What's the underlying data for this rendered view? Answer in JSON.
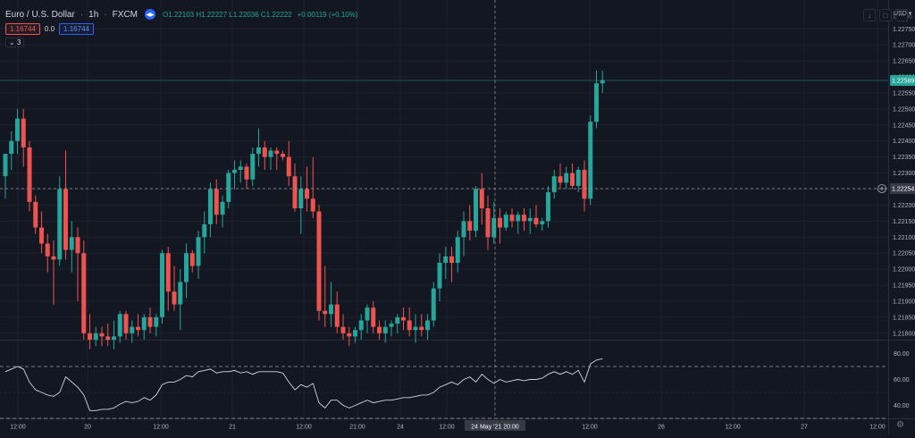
{
  "legend": {
    "symbol": "Euro / U.S. Dollar",
    "interval": "1h",
    "exchange": "FXCM",
    "open": "O1.22103",
    "high": "H1.22227",
    "low": "L1.22036",
    "close": "C1.22222",
    "change": "+0.00119 (+0.10%)"
  },
  "trade": {
    "sell_price": "1.16744",
    "spread": "0.0",
    "buy_price": "1.16744"
  },
  "indicators_toggle": "3",
  "currency": "USD",
  "price_axis": {
    "labels": [
      "1.22750",
      "1.22700",
      "1.22650",
      "1.22600",
      "1.22550",
      "1.22500",
      "1.22450",
      "1.22400",
      "1.22350",
      "1.22300",
      "1.22250",
      "1.22200",
      "1.22150",
      "1.22100",
      "1.22050",
      "1.22000",
      "1.21950",
      "1.21900",
      "1.21850",
      "1.21800"
    ],
    "top_partial": "1.22800",
    "last_price_tag": "1.22589",
    "crosshair_price_tag": "1.22254"
  },
  "rsi_axis": {
    "labels": [
      "80.00",
      "60.00",
      "40.00"
    ]
  },
  "time_axis": {
    "labels": [
      "12:00",
      "20",
      "12:00",
      "21",
      "12:00",
      "21:00",
      "24",
      "12:00",
      "24 May '21  20:00",
      "12:00",
      "26",
      "12:00",
      "27",
      "12:00"
    ]
  },
  "colors": {
    "background": "#131722",
    "bull": "#26a69a",
    "bear": "#ef5350",
    "grid": "#1e222d",
    "rsi_line": "#d1d4dc"
  },
  "chart_data": {
    "type": "candlestick",
    "ylim": [
      1.2178,
      1.2284
    ],
    "candles": [
      [
        1.2229,
        1.2236,
        1.2222,
        1.2236
      ],
      [
        1.2236,
        1.2243,
        1.2231,
        1.224
      ],
      [
        1.224,
        1.225,
        1.2236,
        1.2247
      ],
      [
        1.2247,
        1.225,
        1.2232,
        1.2238
      ],
      [
        1.2238,
        1.224,
        1.2218,
        1.2221
      ],
      [
        1.2221,
        1.2223,
        1.2211,
        1.2213
      ],
      [
        1.2213,
        1.2218,
        1.2205,
        1.2208
      ],
      [
        1.2208,
        1.2211,
        1.2199,
        1.2204
      ],
      [
        1.2204,
        1.2209,
        1.2189,
        1.2203
      ],
      [
        1.2203,
        1.2229,
        1.2201,
        1.2225
      ],
      [
        1.2225,
        1.2237,
        1.2203,
        1.2206
      ],
      [
        1.2206,
        1.2215,
        1.2199,
        1.221
      ],
      [
        1.221,
        1.2213,
        1.219,
        1.2205
      ],
      [
        1.2205,
        1.2209,
        1.2178,
        1.218
      ],
      [
        1.218,
        1.2186,
        1.2175,
        1.2178
      ],
      [
        1.2178,
        1.2182,
        1.2176,
        1.218
      ],
      [
        1.218,
        1.2182,
        1.2176,
        1.2179
      ],
      [
        1.2179,
        1.2183,
        1.2176,
        1.2178
      ],
      [
        1.2178,
        1.2184,
        1.2175,
        1.2179
      ],
      [
        1.2179,
        1.2187,
        1.2177,
        1.2186
      ],
      [
        1.2186,
        1.2187,
        1.2178,
        1.218
      ],
      [
        1.218,
        1.2184,
        1.2177,
        1.2182
      ],
      [
        1.2182,
        1.2186,
        1.2179,
        1.2181
      ],
      [
        1.2181,
        1.2186,
        1.2178,
        1.2185
      ],
      [
        1.2185,
        1.2188,
        1.218,
        1.2182
      ],
      [
        1.2182,
        1.2186,
        1.2179,
        1.2185
      ],
      [
        1.2185,
        1.2206,
        1.2183,
        1.2205
      ],
      [
        1.2205,
        1.2207,
        1.2187,
        1.2193
      ],
      [
        1.2193,
        1.2201,
        1.2187,
        1.2189
      ],
      [
        1.2189,
        1.22,
        1.2181,
        1.2196
      ],
      [
        1.2196,
        1.2208,
        1.2191,
        1.2205
      ],
      [
        1.2205,
        1.2206,
        1.2199,
        1.2201
      ],
      [
        1.2201,
        1.2212,
        1.2197,
        1.221
      ],
      [
        1.221,
        1.2218,
        1.2205,
        1.2214
      ],
      [
        1.2214,
        1.2227,
        1.221,
        1.2225
      ],
      [
        1.2225,
        1.2228,
        1.2214,
        1.2217
      ],
      [
        1.2217,
        1.2223,
        1.2213,
        1.2221
      ],
      [
        1.2221,
        1.2231,
        1.2219,
        1.223
      ],
      [
        1.223,
        1.2234,
        1.2225,
        1.2231
      ],
      [
        1.2231,
        1.2234,
        1.2227,
        1.2232
      ],
      [
        1.2232,
        1.2233,
        1.2225,
        1.2228
      ],
      [
        1.2228,
        1.2238,
        1.2226,
        1.2236
      ],
      [
        1.2236,
        1.2244,
        1.2232,
        1.2238
      ],
      [
        1.2238,
        1.224,
        1.2231,
        1.2235
      ],
      [
        1.2235,
        1.2238,
        1.2231,
        1.2237
      ],
      [
        1.2237,
        1.2238,
        1.2231,
        1.2236
      ],
      [
        1.2236,
        1.2237,
        1.2234,
        1.2235
      ],
      [
        1.2235,
        1.224,
        1.2226,
        1.2229
      ],
      [
        1.2229,
        1.2233,
        1.2218,
        1.2219
      ],
      [
        1.2219,
        1.2229,
        1.2211,
        1.2225
      ],
      [
        1.2225,
        1.2232,
        1.2218,
        1.2222
      ],
      [
        1.2222,
        1.2235,
        1.2216,
        1.2218
      ],
      [
        1.2218,
        1.222,
        1.2184,
        1.2187
      ],
      [
        1.2187,
        1.2201,
        1.2182,
        1.2186
      ],
      [
        1.2186,
        1.2196,
        1.2182,
        1.2189
      ],
      [
        1.2189,
        1.2193,
        1.218,
        1.2182
      ],
      [
        1.2182,
        1.2186,
        1.2178,
        1.218
      ],
      [
        1.218,
        1.2182,
        1.2176,
        1.2179
      ],
      [
        1.2179,
        1.2182,
        1.2177,
        1.2181
      ],
      [
        1.2181,
        1.2186,
        1.2178,
        1.2184
      ],
      [
        1.2184,
        1.2189,
        1.218,
        1.2188
      ],
      [
        1.2188,
        1.219,
        1.218,
        1.2182
      ],
      [
        1.2182,
        1.2184,
        1.2178,
        1.218
      ],
      [
        1.218,
        1.2184,
        1.2177,
        1.2182
      ],
      [
        1.2182,
        1.2184,
        1.2179,
        1.2183
      ],
      [
        1.2183,
        1.2186,
        1.218,
        1.2185
      ],
      [
        1.2185,
        1.2188,
        1.2181,
        1.2184
      ],
      [
        1.2184,
        1.2188,
        1.2179,
        1.2181
      ],
      [
        1.2181,
        1.2186,
        1.2177,
        1.2182
      ],
      [
        1.2182,
        1.2186,
        1.2179,
        1.2181
      ],
      [
        1.2181,
        1.2186,
        1.2178,
        1.2184
      ],
      [
        1.2184,
        1.2196,
        1.2182,
        1.2194
      ],
      [
        1.2194,
        1.2205,
        1.219,
        1.2202
      ],
      [
        1.2202,
        1.2207,
        1.2197,
        1.2204
      ],
      [
        1.2204,
        1.2207,
        1.2196,
        1.2202
      ],
      [
        1.2202,
        1.2212,
        1.2199,
        1.221
      ],
      [
        1.221,
        1.2218,
        1.2204,
        1.2215
      ],
      [
        1.2215,
        1.222,
        1.2209,
        1.2212
      ],
      [
        1.2212,
        1.2226,
        1.221,
        1.2225
      ],
      [
        1.2225,
        1.223,
        1.2214,
        1.2219
      ],
      [
        1.2219,
        1.2223,
        1.2206,
        1.221
      ],
      [
        1.221,
        1.2221,
        1.2208,
        1.2216
      ],
      [
        1.2216,
        1.2219,
        1.2208,
        1.2213
      ],
      [
        1.2213,
        1.2218,
        1.2212,
        1.2217
      ],
      [
        1.2217,
        1.2219,
        1.2213,
        1.2215
      ],
      [
        1.2215,
        1.2218,
        1.2211,
        1.2217
      ],
      [
        1.2217,
        1.2219,
        1.2212,
        1.2215
      ],
      [
        1.2215,
        1.2219,
        1.2211,
        1.2216
      ],
      [
        1.2216,
        1.222,
        1.2213,
        1.2214
      ],
      [
        1.2214,
        1.2216,
        1.2212,
        1.2215
      ],
      [
        1.2215,
        1.2226,
        1.2213,
        1.2224
      ],
      [
        1.2224,
        1.2231,
        1.2222,
        1.2229
      ],
      [
        1.2229,
        1.2233,
        1.2225,
        1.2227
      ],
      [
        1.2227,
        1.2232,
        1.2225,
        1.223
      ],
      [
        1.223,
        1.2233,
        1.2225,
        1.2226
      ],
      [
        1.2226,
        1.2232,
        1.2224,
        1.2231
      ],
      [
        1.2231,
        1.2234,
        1.2218,
        1.2222
      ],
      [
        1.2222,
        1.2248,
        1.222,
        1.2246
      ],
      [
        1.2246,
        1.2262,
        1.2244,
        1.2258
      ],
      [
        1.2258,
        1.2262,
        1.2255,
        1.2259
      ]
    ],
    "rsi": [
      66,
      68,
      70,
      68,
      58,
      52,
      50,
      48,
      47,
      50,
      62,
      58,
      54,
      48,
      36,
      36,
      37,
      37,
      38,
      41,
      43,
      42,
      43,
      46,
      44,
      48,
      56,
      58,
      58,
      60,
      63,
      62,
      66,
      67,
      68,
      65,
      66,
      66,
      67,
      65,
      66,
      64,
      66,
      66,
      66,
      66,
      65,
      58,
      52,
      56,
      54,
      57,
      42,
      38,
      44,
      44,
      40,
      38,
      40,
      42,
      44,
      42,
      43,
      44,
      44,
      45,
      46,
      46,
      47,
      48,
      48,
      50,
      54,
      56,
      58,
      56,
      60,
      62,
      58,
      64,
      60,
      57,
      60,
      58,
      59,
      60,
      59,
      60,
      60,
      61,
      64,
      66,
      64,
      66,
      64,
      67,
      58,
      72,
      75,
      76
    ],
    "rsi_ylim": [
      30,
      90
    ],
    "rsi_levels": [
      70,
      30
    ]
  }
}
